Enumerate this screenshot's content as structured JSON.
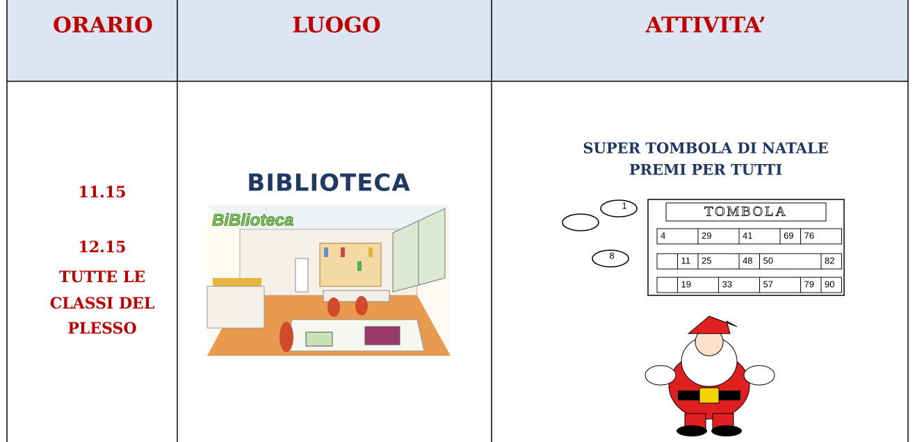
{
  "header": {
    "cells": [
      "ORARIO",
      "LUOGO",
      "ATTIVITA’"
    ]
  },
  "row": {
    "orario": [
      "11.15",
      "12.15",
      "TUTTE LE",
      "CLASSI DEL",
      "PLESSO"
    ],
    "luogo": {
      "title": "BIBLIOTECA",
      "sign": "BiBlioteca"
    },
    "attivita": {
      "lines": [
        "SUPER TOMBOLA DI NATALE",
        "PREMI PER TUTTI"
      ],
      "card": {
        "title": "TOMBOLA",
        "rows": [
          [
            "4",
            "29",
            "41",
            "69",
            "76"
          ],
          [
            "11",
            "25",
            "48",
            "50",
            "82"
          ],
          [
            "19",
            "33",
            "57",
            "79",
            "90"
          ]
        ]
      },
      "chips": [
        "1",
        "8"
      ]
    }
  }
}
